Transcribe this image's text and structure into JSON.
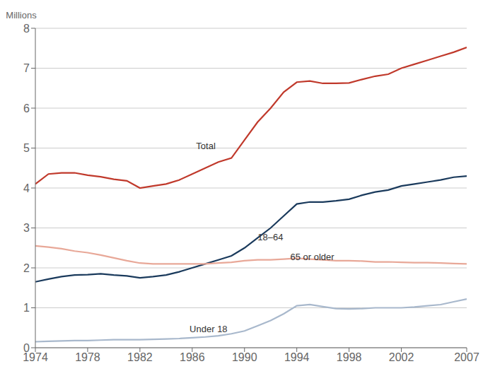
{
  "chart_data": {
    "type": "line",
    "y_label": "Millions",
    "x": [
      1974,
      1975,
      1976,
      1977,
      1978,
      1979,
      1980,
      1981,
      1982,
      1983,
      1984,
      1985,
      1986,
      1987,
      1988,
      1989,
      1990,
      1991,
      1992,
      1993,
      1994,
      1995,
      1996,
      1997,
      1998,
      1999,
      2000,
      2001,
      2002,
      2003,
      2004,
      2005,
      2006,
      2007
    ],
    "series": [
      {
        "name": "Total",
        "color": "#c0392b",
        "values": [
          4.1,
          4.35,
          4.38,
          4.38,
          4.32,
          4.28,
          4.22,
          4.18,
          4.0,
          4.05,
          4.1,
          4.2,
          4.35,
          4.5,
          4.65,
          4.75,
          5.2,
          5.65,
          6.0,
          6.4,
          6.65,
          6.68,
          6.62,
          6.62,
          6.63,
          6.72,
          6.8,
          6.85,
          7.0,
          7.1,
          7.2,
          7.3,
          7.4,
          7.52
        ]
      },
      {
        "name": "18–64",
        "color": "#1a3a5c",
        "values": [
          1.65,
          1.72,
          1.78,
          1.82,
          1.83,
          1.85,
          1.82,
          1.8,
          1.75,
          1.78,
          1.82,
          1.9,
          2.0,
          2.1,
          2.2,
          2.3,
          2.5,
          2.75,
          3.0,
          3.3,
          3.6,
          3.65,
          3.65,
          3.68,
          3.72,
          3.82,
          3.9,
          3.95,
          4.05,
          4.1,
          4.15,
          4.2,
          4.27,
          4.3
        ]
      },
      {
        "name": "65 or older",
        "color": "#e8a898",
        "values": [
          2.55,
          2.52,
          2.48,
          2.42,
          2.38,
          2.32,
          2.25,
          2.18,
          2.12,
          2.1,
          2.1,
          2.1,
          2.1,
          2.1,
          2.12,
          2.14,
          2.18,
          2.2,
          2.2,
          2.22,
          2.24,
          2.22,
          2.2,
          2.18,
          2.18,
          2.17,
          2.15,
          2.15,
          2.14,
          2.13,
          2.13,
          2.12,
          2.11,
          2.1
        ]
      },
      {
        "name": "Under 18",
        "color": "#a8b8cc",
        "values": [
          0.15,
          0.16,
          0.17,
          0.18,
          0.18,
          0.19,
          0.2,
          0.2,
          0.2,
          0.21,
          0.22,
          0.23,
          0.25,
          0.27,
          0.3,
          0.35,
          0.42,
          0.55,
          0.68,
          0.85,
          1.05,
          1.08,
          1.03,
          0.98,
          0.97,
          0.98,
          1.0,
          1.0,
          1.0,
          1.02,
          1.05,
          1.08,
          1.15,
          1.22
        ]
      }
    ],
    "annotations": [
      {
        "text": "Total",
        "x": 1986.3,
        "y": 5.05
      },
      {
        "text": "18–64",
        "x": 1991.0,
        "y": 2.78
      },
      {
        "text": "65 or older",
        "x": 1993.5,
        "y": 2.28
      },
      {
        "text": "Under 18",
        "x": 1985.8,
        "y": 0.47
      }
    ],
    "xlim": [
      1974,
      2007
    ],
    "xticks": [
      1974,
      1978,
      1982,
      1986,
      1990,
      1994,
      1998,
      2002,
      2007
    ],
    "ylim": [
      0,
      8
    ],
    "yticks": [
      0,
      1,
      2,
      3,
      4,
      5,
      6,
      7,
      8
    ],
    "grid": true
  }
}
